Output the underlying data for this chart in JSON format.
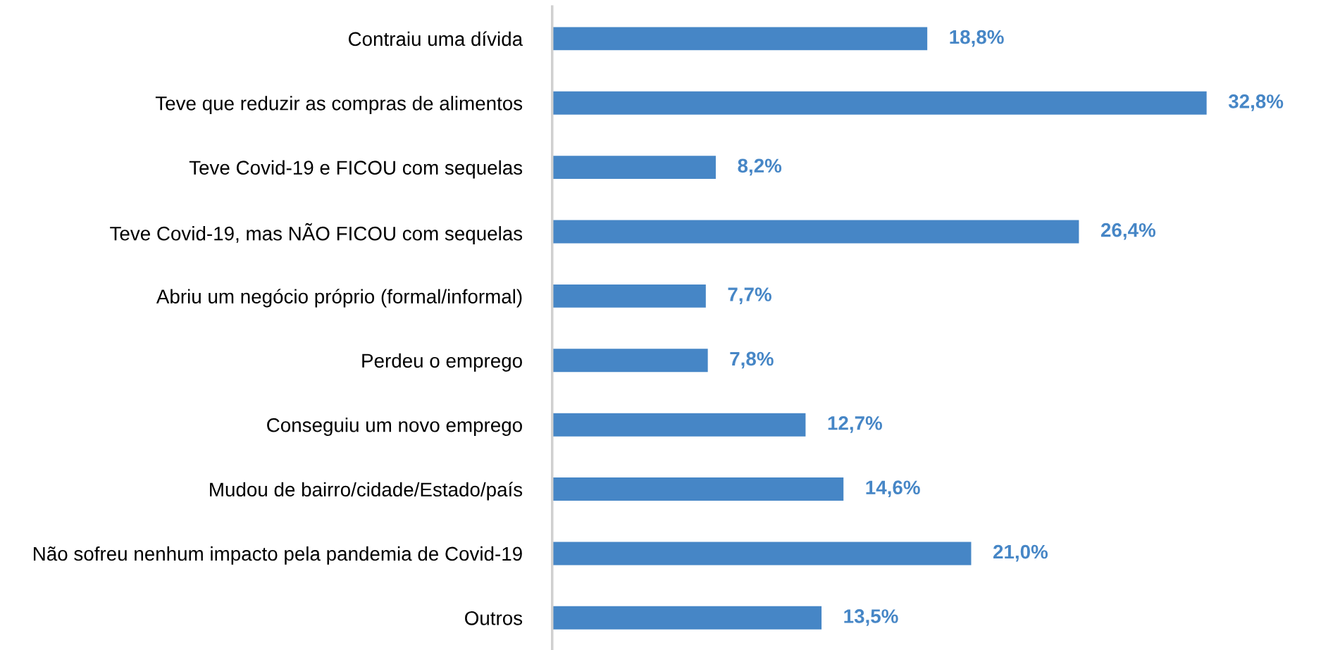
{
  "chart_data": {
    "type": "bar",
    "orientation": "horizontal",
    "color": "#4686c6",
    "categories": [
      "Contraiu uma dívida",
      "Teve que reduzir as compras de alimentos",
      "Teve Covid-19 e FICOU com sequelas",
      "Teve Covid-19, mas NÃO FICOU com sequelas",
      "Abriu um negócio próprio (formal/informal)",
      "Perdeu o emprego",
      "Conseguiu um novo emprego",
      "Mudou de bairro/cidade/Estado/país",
      "Não sofreu nenhum impacto pela pandemia de Covid-19",
      "Outros"
    ],
    "values": [
      18.8,
      32.8,
      8.2,
      26.4,
      7.7,
      7.8,
      12.7,
      14.6,
      21.0,
      13.5
    ],
    "value_labels": [
      "18,8%",
      "32,8%",
      "8,2%",
      "26,4%",
      "7,7%",
      "7,8%",
      "12,7%",
      "14,6%",
      "21,0%",
      "13,5%"
    ],
    "grid": false,
    "legend": false
  }
}
